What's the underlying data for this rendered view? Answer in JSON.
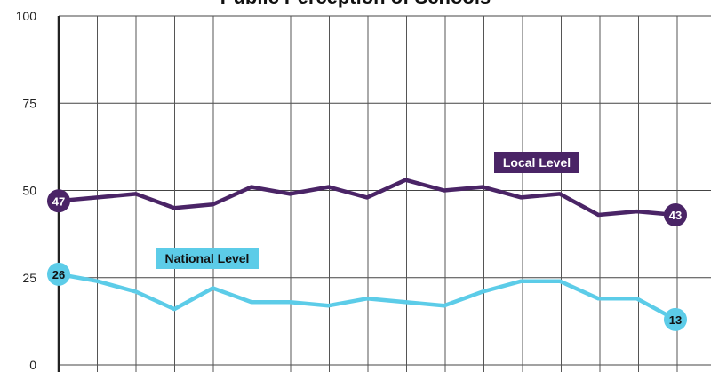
{
  "chart_data": {
    "type": "line",
    "title": "Public Perception of Schools",
    "xlabel": "",
    "ylabel": "",
    "ylim": [
      0,
      100
    ],
    "yticks": [
      0,
      25,
      50,
      75,
      100
    ],
    "grid": true,
    "x": [
      1,
      2,
      3,
      4,
      5,
      6,
      7,
      8,
      9,
      10,
      11,
      12,
      13,
      14,
      15,
      16,
      17
    ],
    "series": [
      {
        "name": "Local Level",
        "color": "#4a2466",
        "values": [
          47,
          48,
          49,
          45,
          46,
          51,
          49,
          51,
          48,
          53,
          50,
          51,
          48,
          49,
          43,
          44,
          43
        ],
        "start_label": "47",
        "end_label": "43"
      },
      {
        "name": "National Level",
        "color": "#5ccce8",
        "values": [
          26,
          24,
          21,
          16,
          22,
          18,
          18,
          17,
          19,
          18,
          17,
          21,
          24,
          24,
          19,
          19,
          13
        ],
        "start_label": "26",
        "end_label": "13"
      }
    ]
  }
}
